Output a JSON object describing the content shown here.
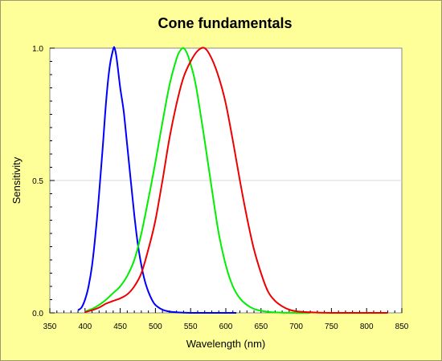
{
  "chart_data": {
    "type": "line",
    "title": "Cone fundamentals",
    "xlabel": "Wavelength (nm)",
    "ylabel": "Sensitivity",
    "xlim": [
      350,
      850
    ],
    "ylim": [
      0.0,
      1.0
    ],
    "x_ticks": [
      "350",
      "400",
      "450",
      "500",
      "550",
      "600",
      "650",
      "700",
      "750",
      "800",
      "850"
    ],
    "y_ticks": [
      "0.0",
      "0.5",
      "1.0"
    ],
    "grid": "horizontal at 0.5",
    "colors": {
      "background": "#ffff99",
      "plot_area": "#ffffff",
      "s_cone": "#0000ff",
      "m_cone": "#00ee00",
      "l_cone": "#ee0000"
    },
    "series": [
      {
        "color": "#0000ff",
        "x": [
          390,
          395,
          400,
          405,
          410,
          415,
          420,
          425,
          430,
          435,
          440,
          442,
          445,
          450,
          455,
          460,
          465,
          470,
          475,
          480,
          485,
          490,
          495,
          500,
          510,
          520,
          530,
          540,
          550,
          560,
          580,
          600,
          615
        ],
        "y": [
          0.01,
          0.02,
          0.05,
          0.1,
          0.18,
          0.3,
          0.45,
          0.62,
          0.8,
          0.93,
          0.995,
          1.0,
          0.96,
          0.85,
          0.76,
          0.63,
          0.5,
          0.37,
          0.26,
          0.18,
          0.12,
          0.08,
          0.05,
          0.03,
          0.012,
          0.005,
          0.002,
          0.001,
          0.0,
          0.0,
          0.0,
          0.0,
          0.0
        ]
      },
      {
        "color": "#00ee00",
        "x": [
          400,
          410,
          420,
          430,
          440,
          450,
          460,
          470,
          480,
          490,
          500,
          510,
          520,
          530,
          535,
          540,
          545,
          550,
          555,
          560,
          570,
          580,
          590,
          600,
          610,
          620,
          630,
          640,
          650,
          660,
          680,
          700,
          720
        ],
        "y": [
          0.005,
          0.015,
          0.03,
          0.05,
          0.075,
          0.1,
          0.14,
          0.2,
          0.3,
          0.43,
          0.57,
          0.72,
          0.86,
          0.96,
          0.99,
          1.0,
          0.98,
          0.94,
          0.89,
          0.82,
          0.65,
          0.47,
          0.3,
          0.18,
          0.1,
          0.055,
          0.03,
          0.015,
          0.008,
          0.004,
          0.001,
          0.0,
          0.0
        ]
      },
      {
        "color": "#ee0000",
        "x": [
          400,
          410,
          420,
          430,
          440,
          450,
          460,
          470,
          480,
          490,
          500,
          510,
          520,
          530,
          540,
          550,
          560,
          570,
          580,
          590,
          600,
          610,
          620,
          630,
          640,
          650,
          660,
          670,
          680,
          690,
          700,
          720,
          750,
          800,
          830
        ],
        "y": [
          0.003,
          0.01,
          0.02,
          0.035,
          0.045,
          0.055,
          0.07,
          0.1,
          0.15,
          0.24,
          0.35,
          0.5,
          0.66,
          0.79,
          0.89,
          0.95,
          0.99,
          1.0,
          0.96,
          0.89,
          0.79,
          0.65,
          0.5,
          0.36,
          0.24,
          0.15,
          0.08,
          0.045,
          0.025,
          0.012,
          0.006,
          0.002,
          0.0,
          0.0,
          0.0
        ]
      }
    ]
  }
}
